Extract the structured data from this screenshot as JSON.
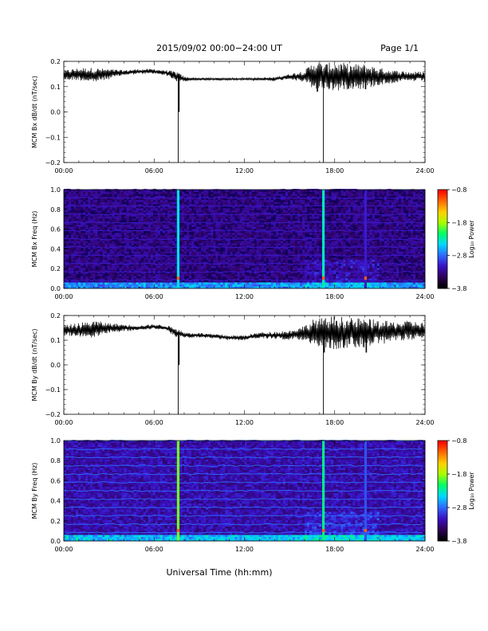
{
  "header": {
    "title": "2015/09/02  00:00−24:00 UT",
    "page": "Page 1/1"
  },
  "colors": {
    "trace": "#000000",
    "axes": "#000000",
    "spectrogram_background": "#12005a",
    "colormap": [
      "#000000",
      "#30005a",
      "#3a12c8",
      "#2c6cff",
      "#00d8ff",
      "#00ff66",
      "#a8ff00",
      "#ffd000",
      "#ff6a00",
      "#ff0000"
    ]
  },
  "chart_data": [
    {
      "type": "line",
      "ylabel": "MCM Bx dB/dt (nT/sec)",
      "xlim": [
        0,
        24
      ],
      "ylim": [
        -0.2,
        0.2
      ],
      "x_ticks": [
        "00:00",
        "06:00",
        "12:00",
        "18:00",
        "24:00"
      ],
      "y_ticks": [
        "0.2",
        "0.1",
        "0.0",
        "−0.1",
        "−0.2"
      ],
      "envelope": {
        "hour": [
          0,
          1,
          2,
          3,
          4,
          5,
          6,
          6.8,
          7.5,
          8,
          9,
          10,
          11,
          12,
          13,
          14,
          15,
          16,
          16.7,
          17.3,
          18,
          19,
          20,
          21,
          22,
          23,
          24
        ],
        "center": [
          0.145,
          0.15,
          0.145,
          0.15,
          0.155,
          0.16,
          0.16,
          0.155,
          0.14,
          0.13,
          0.13,
          0.13,
          0.13,
          0.13,
          0.13,
          0.13,
          0.14,
          0.14,
          0.145,
          0.14,
          0.14,
          0.14,
          0.14,
          0.14,
          0.14,
          0.14,
          0.14
        ],
        "amplitude": [
          0.02,
          0.025,
          0.03,
          0.02,
          0.01,
          0.01,
          0.01,
          0.01,
          0.02,
          0.01,
          0.005,
          0.005,
          0.005,
          0.005,
          0.006,
          0.008,
          0.01,
          0.025,
          0.06,
          0.05,
          0.06,
          0.05,
          0.05,
          0.035,
          0.025,
          0.02,
          0.02
        ]
      },
      "spikes": [
        {
          "hour": 7.6,
          "y": -0.2
        },
        {
          "hour": 7.65,
          "y": 0.0
        },
        {
          "hour": 17.25,
          "y": -0.2
        },
        {
          "hour": 16.85,
          "y": 0.08
        },
        {
          "hour": 20.05,
          "y": 0.09
        }
      ]
    },
    {
      "type": "heatmap",
      "ylabel": "MCM Bx Freq (Hz)",
      "xlim": [
        0,
        24
      ],
      "ylim": [
        0.0,
        1.0
      ],
      "x_ticks": [
        "00:00",
        "06:00",
        "12:00",
        "18:00",
        "24:00"
      ],
      "y_ticks": [
        "1.0",
        "0.8",
        "0.6",
        "0.4",
        "0.2",
        "0.0"
      ],
      "colorbar": {
        "label": "Log₁₀ Power",
        "range": [
          -3.8,
          -0.8
        ],
        "ticks": [
          "−0.8",
          "−1.8",
          "−2.8",
          "−3.8"
        ]
      },
      "harmonic_interval_hz": 0.0833,
      "vertical_bands": [
        {
          "hour": 7.6,
          "level": -2.4
        },
        {
          "hour": 17.25,
          "level": -2.3
        },
        {
          "hour": 20.05,
          "level": -3.1
        }
      ]
    },
    {
      "type": "line",
      "ylabel": "MCM By dB/dt (nT/sec)",
      "xlim": [
        0,
        24
      ],
      "ylim": [
        -0.2,
        0.2
      ],
      "x_ticks": [
        "00:00",
        "06:00",
        "12:00",
        "18:00",
        "24:00"
      ],
      "y_ticks": [
        "0.2",
        "0.1",
        "0.0",
        "−0.1",
        "−0.2"
      ],
      "envelope": {
        "hour": [
          0,
          1,
          2,
          3,
          4,
          5,
          6,
          6.8,
          7.5,
          8,
          9,
          10,
          11,
          12,
          13,
          14,
          15,
          16,
          16.7,
          17.3,
          18,
          19,
          20,
          21,
          22,
          23,
          24
        ],
        "center": [
          0.14,
          0.14,
          0.145,
          0.15,
          0.15,
          0.15,
          0.155,
          0.15,
          0.13,
          0.12,
          0.12,
          0.115,
          0.11,
          0.11,
          0.12,
          0.12,
          0.12,
          0.13,
          0.13,
          0.13,
          0.13,
          0.13,
          0.13,
          0.13,
          0.135,
          0.14,
          0.14
        ],
        "amplitude": [
          0.02,
          0.03,
          0.035,
          0.02,
          0.015,
          0.01,
          0.01,
          0.01,
          0.02,
          0.012,
          0.01,
          0.01,
          0.01,
          0.01,
          0.012,
          0.015,
          0.02,
          0.03,
          0.06,
          0.06,
          0.07,
          0.06,
          0.06,
          0.05,
          0.04,
          0.04,
          0.03
        ]
      },
      "spikes": [
        {
          "hour": 7.6,
          "y": -0.2
        },
        {
          "hour": 7.65,
          "y": 0.0
        },
        {
          "hour": 17.25,
          "y": -0.2
        },
        {
          "hour": 17.3,
          "y": 0.05
        },
        {
          "hour": 20.1,
          "y": 0.05
        }
      ]
    },
    {
      "type": "heatmap",
      "ylabel": "MCM By Freq (Hz)",
      "xlim": [
        0,
        24
      ],
      "ylim": [
        0.0,
        1.0
      ],
      "x_ticks": [
        "00:00",
        "06:00",
        "12:00",
        "18:00",
        "24:00"
      ],
      "y_ticks": [
        "1.0",
        "0.8",
        "0.6",
        "0.4",
        "0.2",
        "0.0"
      ],
      "colorbar": {
        "label": "Log₁₀ Power",
        "range": [
          -3.8,
          -0.8
        ],
        "ticks": [
          "−0.8",
          "−1.8",
          "−2.8",
          "−3.8"
        ]
      },
      "harmonic_interval_hz": 0.0833,
      "vertical_bands": [
        {
          "hour": 7.6,
          "level": -1.9
        },
        {
          "hour": 17.25,
          "level": -2.2
        },
        {
          "hour": 20.05,
          "level": -2.9
        }
      ]
    }
  ],
  "xlabel": "Universal Time (hh:mm)"
}
